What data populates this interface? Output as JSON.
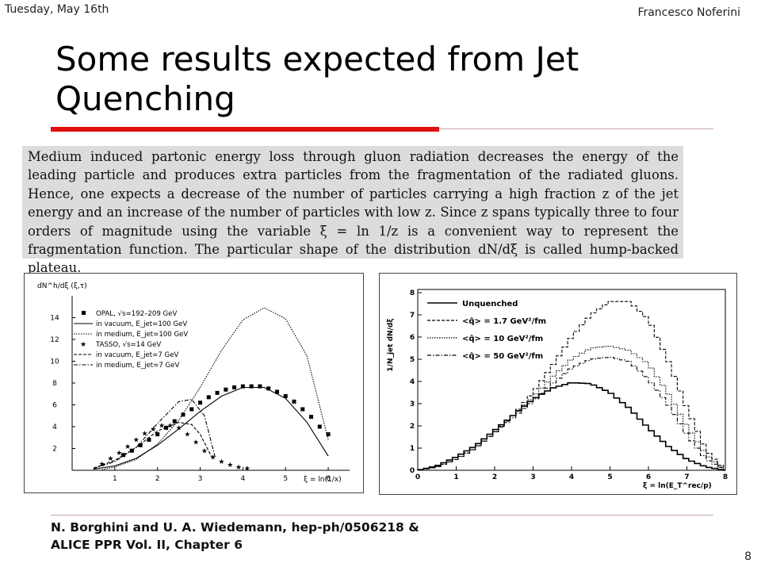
{
  "header": {
    "date": "Tuesday, May 16th",
    "author": "Francesco Noferini"
  },
  "title": "Some results expected from Jet Quenching",
  "paragraph": "Medium induced partonic energy loss through gluon radiation decreases the energy of the leading particle and produces extra particles from the fragmentation of the radiated gluons. Hence, one expects a decrease of the number of particles carrying a high fraction z of the jet energy and an increase of the number of particles with low z. Since z spans typically three to four orders of magnitude using the variable ξ = ln 1/z is a convenient way to represent the fragmentation function. The particular shape of the distribution dN/dξ is called hump-backed plateau.",
  "footer": {
    "line1": "N. Borghini and U. A. Wiedemann, hep-ph/0506218 &",
    "line2": "ALICE PPR Vol. II, Chapter 6"
  },
  "page_number": "8",
  "chart_data": [
    {
      "type": "line",
      "ylabel": "dN^h/dξ (ξ,τ)",
      "xlabel": "ξ = ln(1/x)",
      "xlim": [
        0,
        6.5
      ],
      "ylim": [
        0,
        16
      ],
      "x_ticks": [
        "1",
        "2",
        "3",
        "4",
        "5",
        "6"
      ],
      "y_ticks": [
        "2",
        "4",
        "6",
        "8",
        "10",
        "12",
        "14"
      ],
      "legend": [
        "OPAL, √s=192–209 GeV",
        "in vacuum, E_jet=100 GeV",
        "in medium, E_jet=100 GeV",
        "TASSO, √s=14 GeV",
        "in vacuum, E_jet=7 GeV",
        "in medium, E_jet=7 GeV"
      ],
      "series": [
        {
          "name": "in vacuum, E_jet=100 GeV",
          "style": "solid",
          "x": [
            0.5,
            1,
            1.5,
            2,
            2.5,
            3,
            3.5,
            4,
            4.5,
            5,
            5.5,
            6
          ],
          "y": [
            0.1,
            0.4,
            1.1,
            2.3,
            3.8,
            5.4,
            6.8,
            7.6,
            7.6,
            6.6,
            4.4,
            1.3
          ]
        },
        {
          "name": "in medium, E_jet=100 GeV",
          "style": "dotted",
          "x": [
            0.7,
            1,
            1.5,
            2,
            2.5,
            3,
            3.5,
            4,
            4.5,
            5,
            5.5,
            6
          ],
          "y": [
            0.05,
            0.3,
            1.0,
            2.4,
            4.6,
            7.6,
            11,
            13.8,
            14.9,
            13.9,
            10.5,
            2.8
          ]
        },
        {
          "name": "in vacuum, E_jet=7 GeV",
          "style": "dashed",
          "x": [
            0.5,
            1,
            1.5,
            2,
            2.5,
            2.8,
            3,
            3.3
          ],
          "y": [
            0.2,
            0.9,
            2.1,
            3.6,
            4.4,
            4.2,
            3.3,
            1.0
          ]
        },
        {
          "name": "in medium, E_jet=7 GeV",
          "style": "dashdot",
          "x": [
            0.5,
            1,
            1.5,
            2,
            2.5,
            2.8,
            3.1,
            3.35
          ],
          "y": [
            0.15,
            0.8,
            2.1,
            4.3,
            6.3,
            6.5,
            5.0,
            1.2
          ]
        }
      ],
      "points": [
        {
          "name": "OPAL, √s=192–209 GeV",
          "marker": "square",
          "x": [
            1.2,
            1.4,
            1.6,
            1.8,
            2.0,
            2.2,
            2.4,
            2.6,
            2.8,
            3.0,
            3.2,
            3.4,
            3.6,
            3.8,
            4.0,
            4.2,
            4.4,
            4.6,
            4.8,
            5.0,
            5.2,
            5.4,
            5.6,
            5.8,
            6.0
          ],
          "y": [
            1.4,
            1.8,
            2.3,
            2.8,
            3.3,
            3.9,
            4.5,
            5.1,
            5.6,
            6.2,
            6.7,
            7.1,
            7.4,
            7.6,
            7.7,
            7.7,
            7.7,
            7.5,
            7.2,
            6.8,
            6.3,
            5.6,
            4.9,
            4.0,
            3.3
          ]
        },
        {
          "name": "TASSO, √s=14 GeV",
          "marker": "star",
          "x": [
            0.7,
            0.9,
            1.1,
            1.3,
            1.5,
            1.7,
            1.9,
            2.1,
            2.3,
            2.5,
            2.7,
            2.9,
            3.1,
            3.3,
            3.5,
            3.7,
            3.9,
            4.1
          ],
          "y": [
            0.6,
            1.1,
            1.6,
            2.2,
            2.8,
            3.4,
            3.8,
            4.1,
            4.1,
            3.9,
            3.3,
            2.6,
            1.8,
            1.2,
            0.8,
            0.5,
            0.3,
            0.2
          ]
        }
      ]
    },
    {
      "type": "line",
      "ylabel": "1/N_jet dN/dξ",
      "xlabel": "ξ = ln(E_T^rec/p)",
      "xlim": [
        0,
        8
      ],
      "ylim": [
        0,
        8
      ],
      "x_ticks": [
        "0",
        "1",
        "2",
        "3",
        "4",
        "5",
        "6",
        "7",
        "8"
      ],
      "y_ticks": [
        "0",
        "1",
        "2",
        "3",
        "4",
        "5",
        "6",
        "7",
        "8"
      ],
      "legend": [
        "Unquenched",
        "<q̂> = 1.7 GeV²/fm",
        "<q̂> = 10 GeV²/fm",
        "<q̂> = 50 GeV²/fm"
      ],
      "series": [
        {
          "name": "Unquenched",
          "style": "solid",
          "x": [
            0,
            0.5,
            1,
            1.5,
            2,
            2.5,
            3,
            3.5,
            4,
            4.5,
            5,
            5.5,
            6,
            6.5,
            7,
            7.5,
            8
          ],
          "y": [
            0,
            0.2,
            0.6,
            1.1,
            1.8,
            2.5,
            3.2,
            3.7,
            3.95,
            3.9,
            3.5,
            2.8,
            1.9,
            1.1,
            0.5,
            0.15,
            0
          ]
        },
        {
          "name": "<q̂> = 1.7 GeV²/fm",
          "style": "dashed",
          "x": [
            0,
            0.5,
            1,
            1.5,
            2,
            2.5,
            3,
            3.5,
            4,
            4.5,
            5,
            5.5,
            6,
            6.5,
            7,
            7.5,
            8
          ],
          "y": [
            0,
            0.15,
            0.5,
            1.0,
            1.7,
            2.5,
            3.5,
            4.7,
            6.0,
            7.0,
            7.6,
            7.6,
            6.8,
            5.0,
            2.8,
            0.9,
            0
          ]
        },
        {
          "name": "<q̂> = 10 GeV²/fm",
          "style": "dotted",
          "x": [
            0,
            0.5,
            1,
            1.5,
            2,
            2.5,
            3,
            3.5,
            4,
            4.5,
            5,
            5.5,
            6,
            6.5,
            7,
            7.5,
            8
          ],
          "y": [
            0,
            0.15,
            0.5,
            1.0,
            1.7,
            2.5,
            3.3,
            4.2,
            5.0,
            5.5,
            5.6,
            5.4,
            4.8,
            3.5,
            2.0,
            0.7,
            0
          ]
        },
        {
          "name": "<q̂> = 50 GeV²/fm",
          "style": "dashdot",
          "x": [
            0,
            0.5,
            1,
            1.5,
            2,
            2.5,
            3,
            3.5,
            4,
            4.5,
            5,
            5.5,
            6,
            6.5,
            7,
            7.5,
            8
          ],
          "y": [
            0,
            0.15,
            0.5,
            1.0,
            1.7,
            2.4,
            3.1,
            3.9,
            4.6,
            5.0,
            5.1,
            4.9,
            4.1,
            3.0,
            1.6,
            0.5,
            0
          ]
        }
      ]
    }
  ]
}
